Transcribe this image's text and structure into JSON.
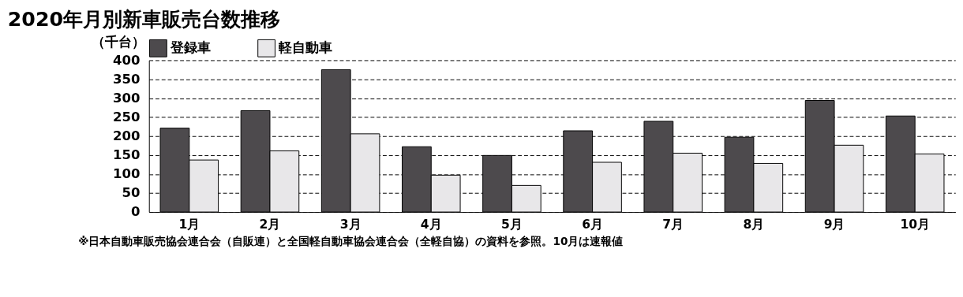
{
  "chart_data": {
    "type": "bar",
    "title": "2020年月別新車販売台数推移",
    "ylabel": "（千台）",
    "categories": [
      "1月",
      "2月",
      "3月",
      "4月",
      "5月",
      "6月",
      "7月",
      "8月",
      "9月",
      "10月"
    ],
    "series": [
      {
        "name": "登録車",
        "color": "#4d4a4d",
        "values": [
          221,
          267,
          375,
          172,
          149,
          214,
          239,
          197,
          294,
          253
        ]
      },
      {
        "name": "軽自動車",
        "color": "#e8e7e9",
        "values": [
          137,
          161,
          206,
          97,
          70,
          131,
          155,
          128,
          176,
          153
        ]
      }
    ],
    "ylim": [
      0,
      400
    ],
    "yticks": [
      0,
      50,
      100,
      150,
      200,
      250,
      300,
      350,
      400
    ],
    "grid": "y",
    "legend": "top",
    "annotations": [
      "※日本自動車販売協会連合会（自販連）と全国軽自動車協会連合会（全軽自協）の資料を参照。10月は速報値"
    ]
  }
}
